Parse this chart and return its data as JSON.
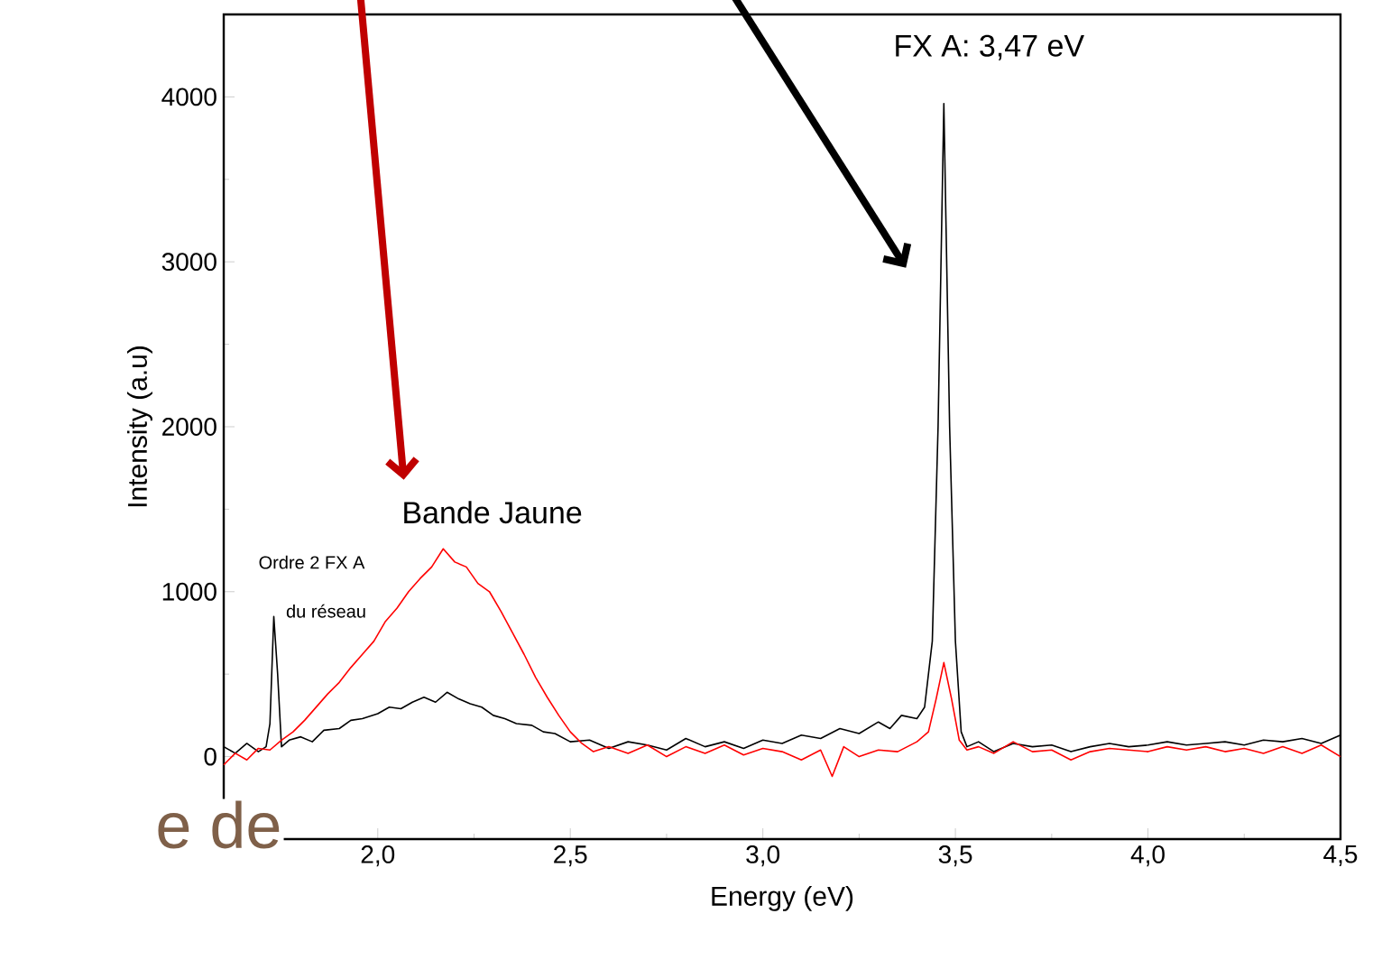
{
  "chart_data": {
    "type": "line",
    "xlabel": "Energy (eV)",
    "ylabel": "Intensity (a.u)",
    "xlim": [
      1.6,
      4.5
    ],
    "ylim": [
      -500,
      4500
    ],
    "xticks": [
      {
        "value": 2.0,
        "label": "2,0"
      },
      {
        "value": 2.5,
        "label": "2,5"
      },
      {
        "value": 3.0,
        "label": "3,0"
      },
      {
        "value": 3.5,
        "label": "3,5"
      },
      {
        "value": 4.0,
        "label": "4,0"
      },
      {
        "value": 4.5,
        "label": "4,5"
      }
    ],
    "yticks": [
      0,
      1000,
      2000,
      3000,
      4000
    ],
    "series": [
      {
        "color": "#000000",
        "x": [
          1.6,
          1.63,
          1.66,
          1.69,
          1.71,
          1.72,
          1.73,
          1.74,
          1.75,
          1.77,
          1.8,
          1.83,
          1.86,
          1.9,
          1.93,
          1.96,
          2.0,
          2.03,
          2.06,
          2.09,
          2.12,
          2.15,
          2.18,
          2.21,
          2.24,
          2.27,
          2.3,
          2.33,
          2.36,
          2.4,
          2.43,
          2.46,
          2.5,
          2.55,
          2.6,
          2.65,
          2.7,
          2.75,
          2.8,
          2.85,
          2.9,
          2.95,
          3.0,
          3.05,
          3.1,
          3.15,
          3.2,
          3.25,
          3.3,
          3.33,
          3.36,
          3.4,
          3.42,
          3.44,
          3.455,
          3.47,
          3.485,
          3.5,
          3.515,
          3.53,
          3.56,
          3.6,
          3.65,
          3.7,
          3.75,
          3.8,
          3.85,
          3.9,
          3.95,
          4.0,
          4.05,
          4.1,
          4.15,
          4.2,
          4.25,
          4.3,
          4.35,
          4.4,
          4.45,
          4.5
        ],
        "values": [
          60,
          20,
          80,
          30,
          60,
          200,
          850,
          500,
          60,
          100,
          120,
          90,
          160,
          170,
          220,
          230,
          260,
          300,
          290,
          330,
          360,
          330,
          390,
          350,
          320,
          300,
          250,
          230,
          200,
          190,
          150,
          140,
          90,
          100,
          50,
          90,
          70,
          40,
          110,
          60,
          90,
          50,
          100,
          80,
          130,
          110,
          170,
          140,
          210,
          170,
          250,
          230,
          300,
          700,
          2000,
          3960,
          2000,
          700,
          150,
          60,
          90,
          30,
          80,
          60,
          70,
          30,
          60,
          80,
          60,
          70,
          90,
          70,
          80,
          90,
          70,
          100,
          90,
          110,
          80,
          130
        ]
      },
      {
        "color": "#ff0000",
        "x": [
          1.6,
          1.63,
          1.66,
          1.69,
          1.72,
          1.75,
          1.78,
          1.81,
          1.84,
          1.87,
          1.9,
          1.93,
          1.96,
          1.99,
          2.02,
          2.05,
          2.08,
          2.11,
          2.14,
          2.17,
          2.2,
          2.23,
          2.26,
          2.29,
          2.32,
          2.35,
          2.38,
          2.41,
          2.44,
          2.47,
          2.5,
          2.53,
          2.56,
          2.6,
          2.65,
          2.7,
          2.75,
          2.8,
          2.85,
          2.9,
          2.95,
          3.0,
          3.05,
          3.1,
          3.15,
          3.18,
          3.21,
          3.25,
          3.3,
          3.35,
          3.4,
          3.43,
          3.45,
          3.47,
          3.49,
          3.51,
          3.53,
          3.56,
          3.6,
          3.65,
          3.7,
          3.75,
          3.8,
          3.85,
          3.9,
          3.95,
          4.0,
          4.05,
          4.1,
          4.15,
          4.2,
          4.25,
          4.3,
          4.35,
          4.4,
          4.45,
          4.5
        ],
        "values": [
          -50,
          20,
          -20,
          50,
          40,
          100,
          150,
          220,
          300,
          380,
          450,
          540,
          620,
          700,
          820,
          900,
          1000,
          1080,
          1150,
          1260,
          1180,
          1150,
          1050,
          1000,
          880,
          750,
          620,
          480,
          360,
          250,
          150,
          80,
          30,
          60,
          20,
          70,
          0,
          60,
          20,
          70,
          10,
          50,
          30,
          -20,
          40,
          -120,
          60,
          0,
          40,
          30,
          90,
          150,
          350,
          570,
          350,
          100,
          40,
          60,
          20,
          90,
          30,
          40,
          -20,
          30,
          50,
          40,
          30,
          60,
          40,
          60,
          30,
          50,
          20,
          60,
          20,
          70,
          0
        ]
      }
    ],
    "annotations": [
      {
        "text": "FX A: 3,47 eV",
        "x": 3.47,
        "y": 3960
      },
      {
        "text": "Bande Jaune",
        "x": 2.18,
        "y": 1230
      },
      {
        "text": "Ordre 2 FX A",
        "x": 1.73,
        "y": 850
      },
      {
        "text": "du réseau",
        "x": 1.73,
        "y": 850
      },
      "e de"
    ]
  }
}
